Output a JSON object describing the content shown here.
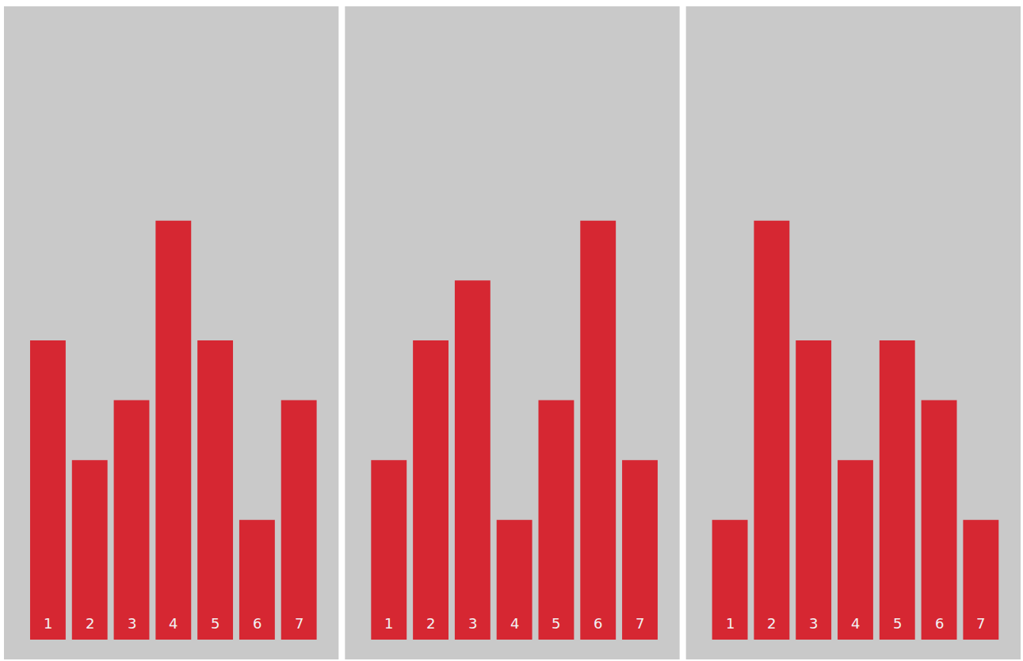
{
  "chart_data": [
    {
      "type": "bar",
      "categories": [
        "1",
        "2",
        "3",
        "4",
        "5",
        "6",
        "7"
      ],
      "values": [
        5,
        3,
        4,
        7,
        5,
        2,
        4
      ],
      "color": "#d71f2a",
      "ylim": [
        -0.33,
        10.58
      ],
      "tick_labels": false,
      "grid": false
    },
    {
      "type": "bar",
      "categories": [
        "1",
        "2",
        "3",
        "4",
        "5",
        "6",
        "7"
      ],
      "values": [
        3,
        5,
        6,
        2,
        4,
        7,
        3
      ],
      "color": "#d71f2a",
      "ylim": [
        -0.33,
        10.58
      ],
      "tick_labels": false,
      "grid": false
    },
    {
      "type": "bar",
      "categories": [
        "1",
        "2",
        "3",
        "4",
        "5",
        "6",
        "7"
      ],
      "values": [
        2,
        7,
        5,
        3,
        5,
        4,
        2
      ],
      "color": "#d71f2a",
      "ylim": [
        -0.33,
        10.58
      ],
      "tick_labels": false,
      "grid": false
    }
  ]
}
